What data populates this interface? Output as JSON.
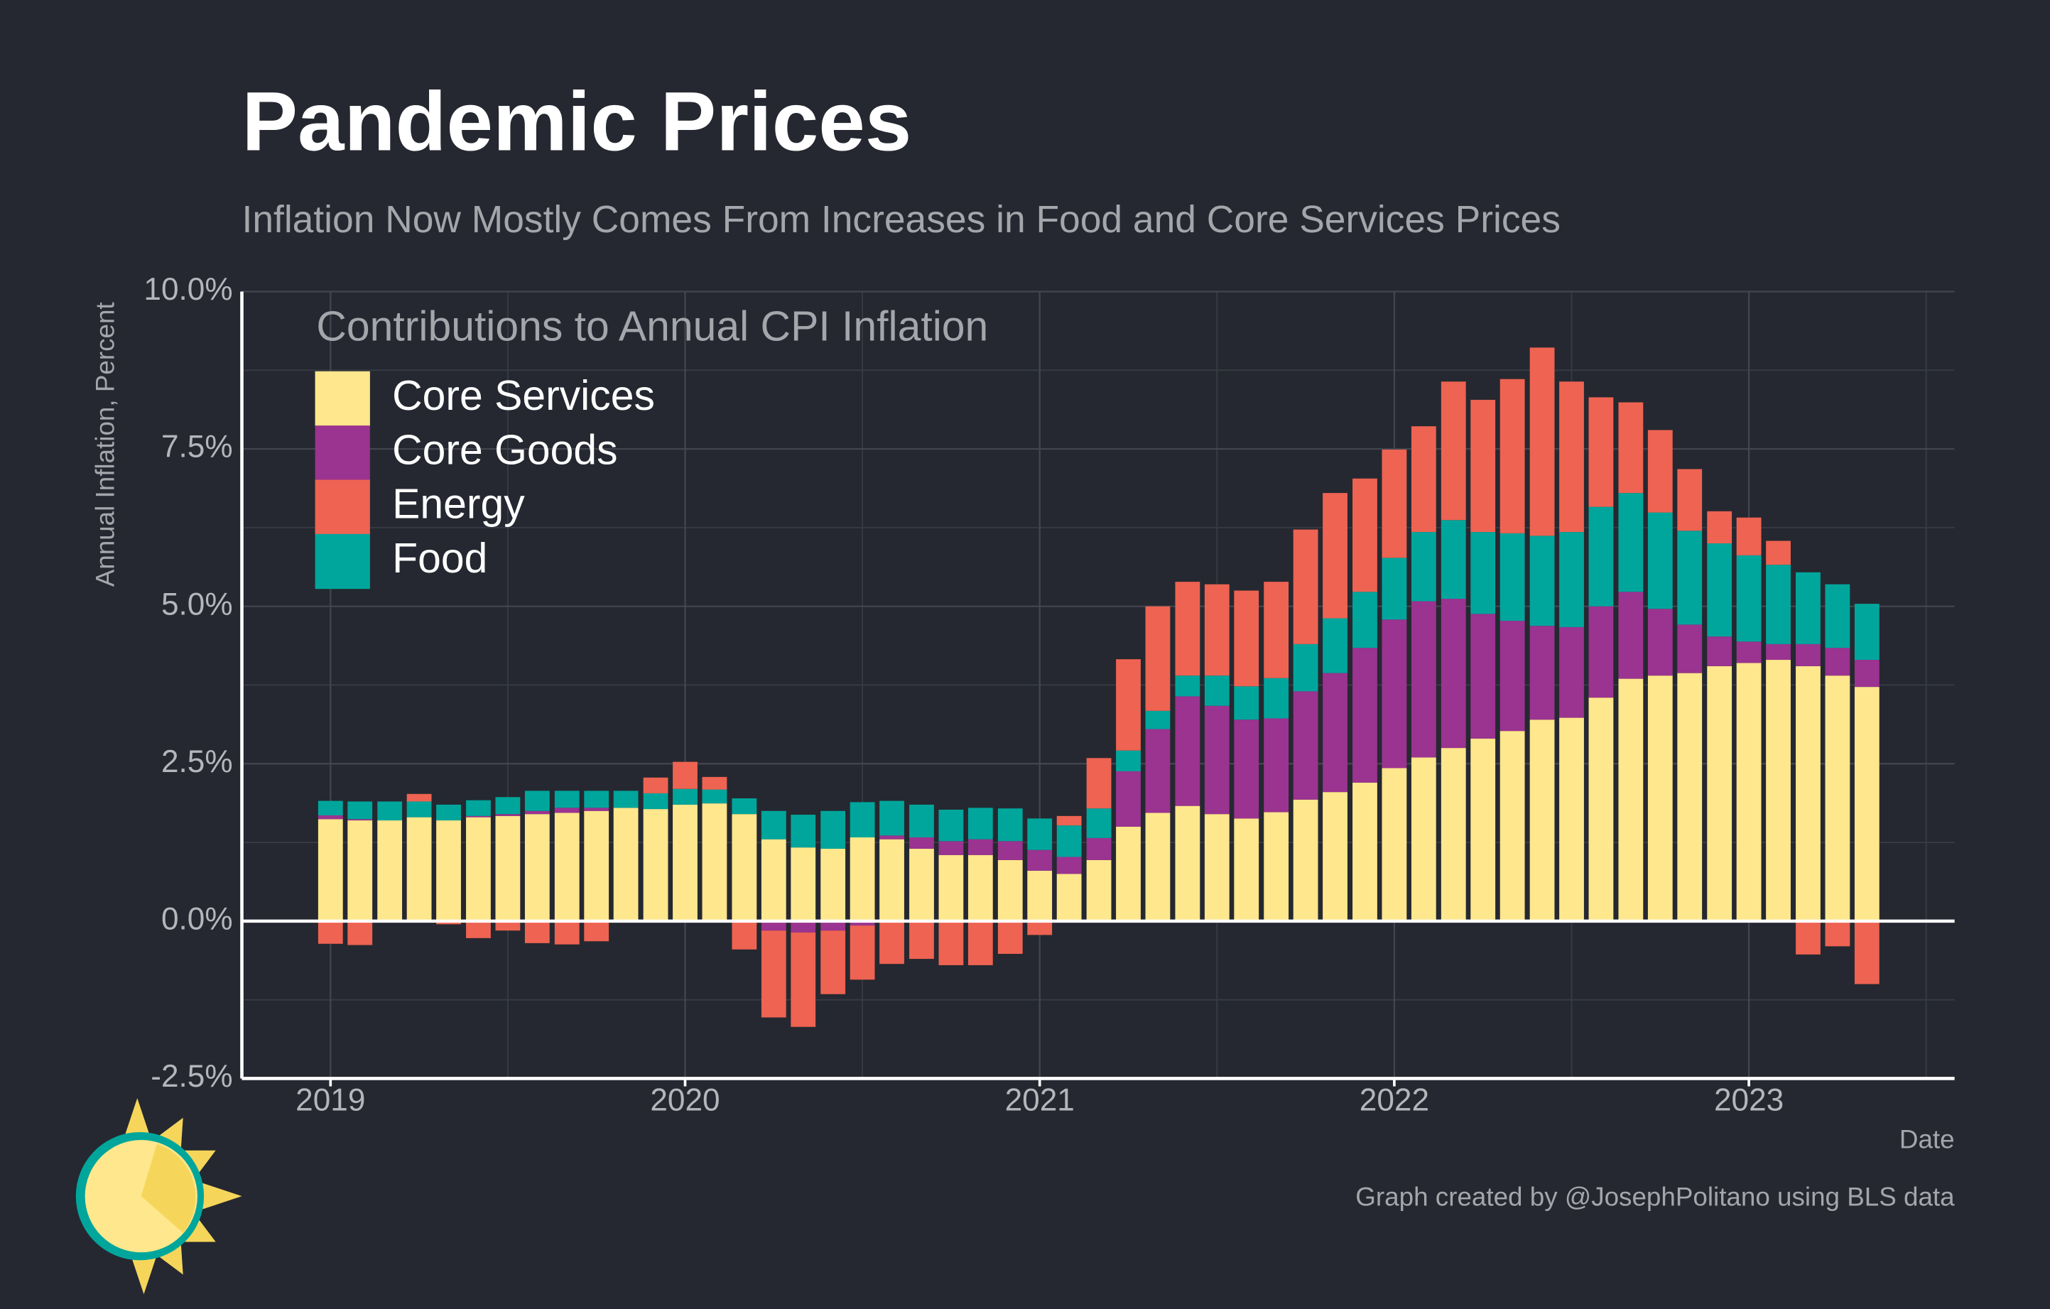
{
  "chart_data": {
    "type": "stacked_bar",
    "title": "Pandemic Prices",
    "subtitle": "Inflation Now Mostly Comes From Increases in Food and Core Services Prices",
    "ylabel": "Annual Inflation, Percent",
    "xlabel": "Date",
    "caption": "Graph created by @JosephPolitano using BLS data",
    "legend_title": "Contributions to Annual CPI Inflation",
    "legend": "top-left",
    "grid": true,
    "x": [
      2019,
      2019.083,
      2019.167,
      2019.25,
      2019.333,
      2019.417,
      2019.5,
      2019.583,
      2019.667,
      2019.75,
      2019.833,
      2019.917,
      2020,
      2020.083,
      2020.167,
      2020.25,
      2020.333,
      2020.417,
      2020.5,
      2020.583,
      2020.667,
      2020.75,
      2020.833,
      2020.917,
      2021,
      2021.083,
      2021.167,
      2021.25,
      2021.333,
      2021.417,
      2021.5,
      2021.583,
      2021.667,
      2021.75,
      2021.833,
      2021.917,
      2022,
      2022.083,
      2022.167,
      2022.25,
      2022.333,
      2022.417,
      2022.5,
      2022.583,
      2022.667,
      2022.75,
      2022.833,
      2022.917,
      2023,
      2023.083,
      2023.167,
      2023.25,
      2023.333
    ],
    "xlim": [
      2018.75,
      2023.58
    ],
    "xticks": [
      2019,
      2020,
      2021,
      2022,
      2023
    ],
    "x_minor_ticks": [
      2019.5,
      2020.5,
      2021.5,
      2022.5,
      2023.5
    ],
    "ylim": [
      -2.5,
      10
    ],
    "yticks": [
      {
        "value": -2.5,
        "label": "-2.5%"
      },
      {
        "value": 0,
        "label": "0.0%"
      },
      {
        "value": 2.5,
        "label": "2.5%"
      },
      {
        "value": 5,
        "label": "5.0%"
      },
      {
        "value": 7.5,
        "label": "7.5%"
      },
      {
        "value": 10,
        "label": "10.0%"
      }
    ],
    "y_minor_ticks": [
      -1.25,
      1.25,
      3.75,
      6.25,
      8.75
    ],
    "series": [
      {
        "name": "Core Services",
        "color": "#fee78c",
        "values": [
          1.62,
          1.6,
          1.6,
          1.65,
          1.6,
          1.65,
          1.67,
          1.7,
          1.72,
          1.75,
          1.8,
          1.78,
          1.85,
          1.87,
          1.7,
          1.3,
          1.17,
          1.15,
          1.33,
          1.3,
          1.15,
          1.05,
          1.05,
          0.97,
          0.8,
          0.75,
          0.97,
          1.5,
          1.72,
          1.83,
          1.7,
          1.63,
          1.73,
          1.93,
          2.05,
          2.2,
          2.43,
          2.6,
          2.75,
          2.9,
          3.02,
          3.2,
          3.23,
          3.55,
          3.85,
          3.9,
          3.94,
          4.05,
          4.1,
          4.15,
          4.05,
          3.9,
          3.72
        ]
      },
      {
        "name": "Core Goods",
        "color": "#9b3390",
        "values": [
          0.06,
          0.02,
          0,
          0,
          0,
          0.02,
          0.03,
          0.05,
          0.08,
          0.05,
          0,
          0,
          0,
          0,
          0,
          -0.15,
          -0.18,
          -0.15,
          -0.07,
          0.06,
          0.18,
          0.22,
          0.25,
          0.3,
          0.33,
          0.27,
          0.35,
          0.88,
          1.33,
          1.74,
          1.72,
          1.57,
          1.49,
          1.72,
          1.89,
          2.14,
          2.36,
          2.48,
          2.37,
          1.98,
          1.75,
          1.49,
          1.44,
          1.45,
          1.38,
          1.06,
          0.77,
          0.47,
          0.34,
          0.25,
          0.35,
          0.44,
          0.43
        ]
      },
      {
        "name": "Energy",
        "color": "#ee6352",
        "values": [
          -0.36,
          -0.38,
          0,
          0.12,
          -0.05,
          -0.27,
          -0.15,
          -0.35,
          -0.37,
          -0.32,
          -0.02,
          0.25,
          0.43,
          0.2,
          -0.45,
          -1.38,
          -1.5,
          -1.01,
          -0.86,
          -0.68,
          -0.6,
          -0.7,
          -0.7,
          -0.52,
          -0.22,
          0.15,
          0.8,
          1.45,
          1.66,
          1.49,
          1.45,
          1.52,
          1.53,
          1.82,
          1.99,
          1.8,
          1.72,
          1.68,
          2.2,
          2.1,
          2.45,
          2.99,
          2.39,
          1.74,
          1.44,
          1.31,
          0.98,
          0.51,
          0.6,
          0.38,
          -0.53,
          -0.4,
          -1.0
        ]
      },
      {
        "name": "Food",
        "color": "#00a69c",
        "values": [
          0.23,
          0.28,
          0.3,
          0.25,
          0.25,
          0.25,
          0.27,
          0.32,
          0.27,
          0.27,
          0.27,
          0.25,
          0.25,
          0.22,
          0.25,
          0.45,
          0.52,
          0.6,
          0.56,
          0.55,
          0.52,
          0.5,
          0.5,
          0.52,
          0.5,
          0.5,
          0.47,
          0.33,
          0.29,
          0.33,
          0.48,
          0.53,
          0.64,
          0.75,
          0.87,
          0.89,
          0.98,
          1.1,
          1.25,
          1.3,
          1.39,
          1.43,
          1.51,
          1.58,
          1.57,
          1.53,
          1.49,
          1.48,
          1.37,
          1.26,
          1.14,
          1.01,
          0.89
        ]
      }
    ]
  }
}
